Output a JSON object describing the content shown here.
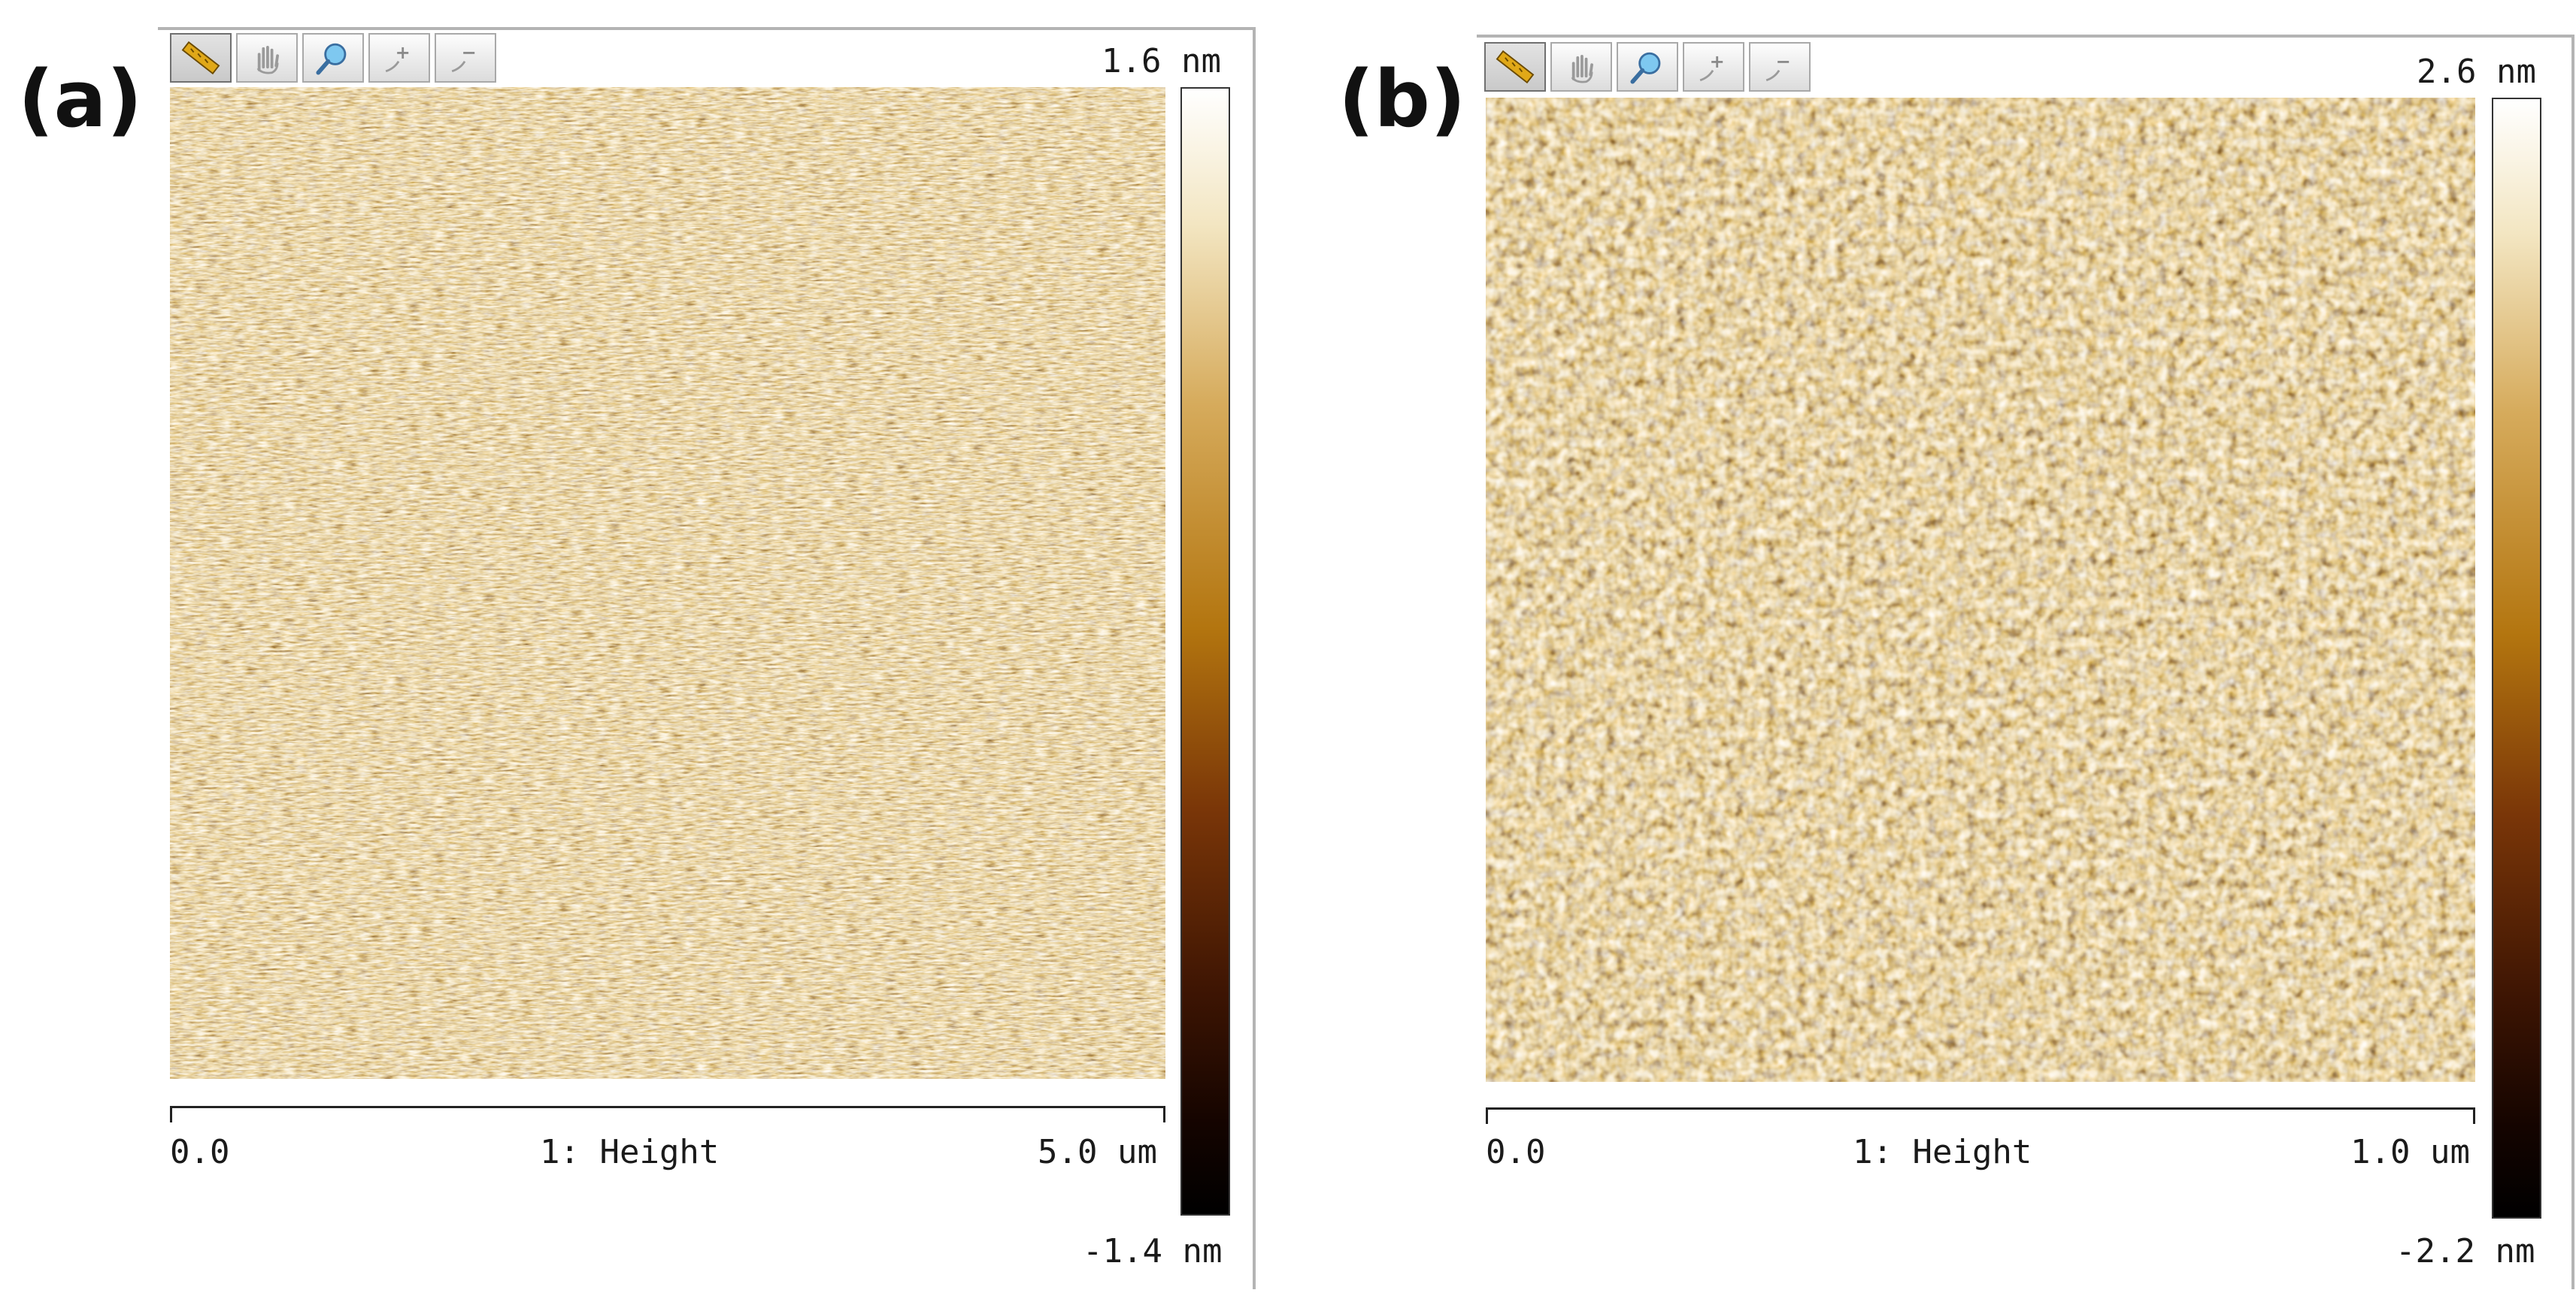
{
  "panels": [
    {
      "label": "(a)",
      "scale_max": "1.6 nm",
      "scale_min": "-1.4 nm",
      "axis_start": "0.0",
      "axis_channel": "1: Height",
      "axis_end": "5.0 um"
    },
    {
      "label": "(b)",
      "scale_max": "2.6 nm",
      "scale_min": "-2.2 nm",
      "axis_start": "0.0",
      "axis_channel": "1: Height",
      "axis_end": "1.0 um"
    }
  ],
  "toolbar": {
    "icons": [
      "ruler-icon",
      "pan-hand-icon",
      "magnifier-icon",
      "zoom-in-icon",
      "zoom-out-icon"
    ]
  },
  "colors": {
    "colormap_light": "#ffffff",
    "colormap_mid": "#b3750f",
    "colormap_dark": "#000000",
    "frame": "#b4b4b4"
  }
}
